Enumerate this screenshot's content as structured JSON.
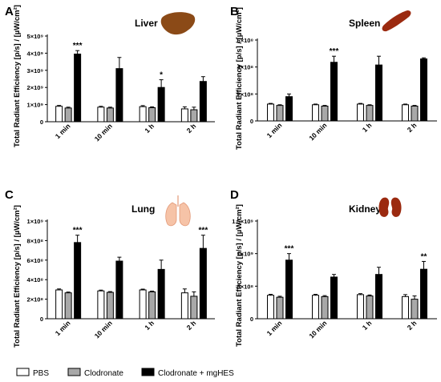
{
  "colors": {
    "PBS": "#ffffff",
    "Clodronate": "#a8a8a8",
    "Clodronate + mgHES": "#000000"
  },
  "legend": [
    {
      "label": "PBS"
    },
    {
      "label": "Clodronate"
    },
    {
      "label": "Clodronate + mgHES"
    }
  ],
  "chart_data": [
    {
      "type": "bar",
      "panel": "A",
      "title": "Liver",
      "icon": "liver-icon",
      "ylabel": "Total Radiant Efficiency [p/s] / [µW/cm²]",
      "categories": [
        "1 min",
        "10 min",
        "1 h",
        "2 h"
      ],
      "ylim": [
        0,
        5
      ],
      "yticks": [
        0,
        1,
        2,
        3,
        4,
        5
      ],
      "ytick_labels": [
        "0",
        "1×10⁹",
        "2×10⁹",
        "3×10⁹",
        "4×10⁹",
        "5×10⁹"
      ],
      "series": [
        {
          "name": "PBS",
          "values": [
            0.9,
            0.85,
            0.88,
            0.75
          ],
          "errors": [
            0.05,
            0.05,
            0.06,
            0.12
          ]
        },
        {
          "name": "Clodronate",
          "values": [
            0.8,
            0.8,
            0.82,
            0.7
          ],
          "errors": [
            0.05,
            0.05,
            0.05,
            0.15
          ]
        },
        {
          "name": "Clodronate + mgHES",
          "values": [
            3.95,
            3.1,
            2.0,
            2.35
          ],
          "errors": [
            0.2,
            0.65,
            0.45,
            0.28
          ]
        }
      ],
      "significance": [
        "***",
        "",
        "*",
        ""
      ]
    },
    {
      "type": "bar",
      "panel": "B",
      "title": "Spleen",
      "icon": "spleen-icon",
      "ylabel": "Total Radiant Efficiency [p/s] / [µW/cm²]",
      "categories": [
        "1 min",
        "10 min",
        "1 h",
        "2 h"
      ],
      "ylim": [
        0,
        6
      ],
      "yticks": [
        0,
        2,
        4,
        6
      ],
      "ytick_labels": [
        "0",
        "2×10⁸",
        "4×10⁸",
        "6×10⁸"
      ],
      "series": [
        {
          "name": "PBS",
          "values": [
            1.25,
            1.2,
            1.25,
            1.2
          ],
          "errors": [
            0.05,
            0.05,
            0.05,
            0.05
          ]
        },
        {
          "name": "Clodronate",
          "values": [
            1.15,
            1.1,
            1.15,
            1.1
          ],
          "errors": [
            0.05,
            0.05,
            0.05,
            0.05
          ]
        },
        {
          "name": "Clodronate + mgHES",
          "values": [
            1.8,
            4.35,
            4.15,
            4.6
          ],
          "errors": [
            0.2,
            0.45,
            0.65,
            0.08
          ]
        }
      ],
      "significance": [
        "",
        "***",
        "",
        ""
      ]
    },
    {
      "type": "bar",
      "panel": "C",
      "title": "Lung",
      "icon": "lung-icon",
      "ylabel": "Total Radiant Efficiency [p/s] / [µW/cm²]",
      "categories": [
        "1 min",
        "10 min",
        "1 h",
        "2 h"
      ],
      "ylim": [
        0,
        10
      ],
      "yticks": [
        0,
        2,
        4,
        6,
        8,
        10
      ],
      "ytick_labels": [
        "0",
        "2×10⁸",
        "4×10⁸",
        "6×10⁸",
        "8×10⁸",
        "1×10⁹"
      ],
      "series": [
        {
          "name": "PBS",
          "values": [
            2.95,
            2.85,
            2.95,
            2.65
          ],
          "errors": [
            0.1,
            0.08,
            0.08,
            0.4
          ]
        },
        {
          "name": "Clodronate",
          "values": [
            2.65,
            2.7,
            2.75,
            2.3
          ],
          "errors": [
            0.08,
            0.08,
            0.08,
            0.45
          ]
        },
        {
          "name": "Clodronate + mgHES",
          "values": [
            7.8,
            5.9,
            5.05,
            7.2
          ],
          "errors": [
            0.75,
            0.4,
            0.95,
            1.35
          ]
        }
      ],
      "significance": [
        "***",
        "",
        "",
        "***"
      ]
    },
    {
      "type": "bar",
      "panel": "D",
      "title": "Kidney",
      "icon": "kidney-icon",
      "ylabel": "Total Radiant Efficiency [p/s] / [µW/cm²]",
      "categories": [
        "1 min",
        "10 min",
        "1 h",
        "2 h"
      ],
      "ylim": [
        0,
        15
      ],
      "yticks": [
        0,
        5,
        10,
        15
      ],
      "ytick_labels": [
        "0",
        "5×10⁸",
        "1×10⁹",
        "1.5×10⁹"
      ],
      "series": [
        {
          "name": "PBS",
          "values": [
            3.6,
            3.6,
            3.7,
            3.4
          ],
          "errors": [
            0.15,
            0.15,
            0.15,
            0.3
          ]
        },
        {
          "name": "Clodronate",
          "values": [
            3.3,
            3.4,
            3.5,
            3.0
          ],
          "errors": [
            0.15,
            0.15,
            0.15,
            0.5
          ]
        },
        {
          "name": "Clodronate + mgHES",
          "values": [
            9.0,
            6.4,
            6.8,
            7.6
          ],
          "errors": [
            1.0,
            0.4,
            1.1,
            1.2
          ]
        }
      ],
      "significance": [
        "***",
        "",
        "",
        "**"
      ]
    }
  ]
}
